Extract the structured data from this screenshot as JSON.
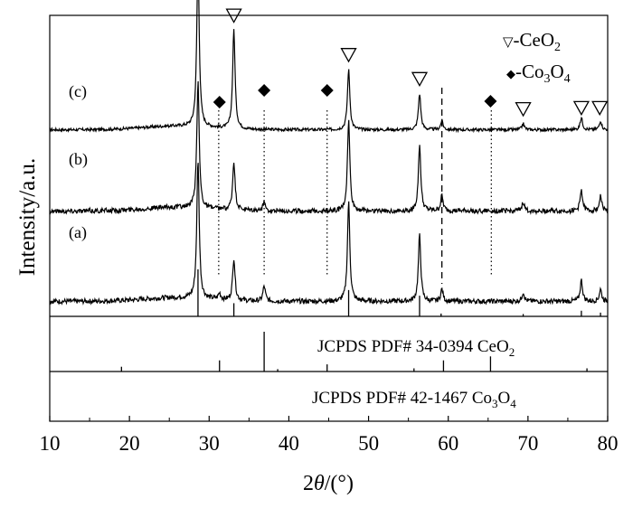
{
  "chart_data": {
    "type": "line",
    "xlabel_prefix": "2",
    "xlabel_theta": "θ",
    "xlabel_suffix": "/(°)",
    "ylabel": "Intensity/a.u.",
    "xlim": [
      10,
      80
    ],
    "x_ticks": [
      10,
      20,
      30,
      40,
      50,
      60,
      70,
      80
    ],
    "legend": {
      "position": "top-right",
      "ceo2_symbol": "▽",
      "ceo2_text": "-CeO",
      "ceo2_sub": "2",
      "co3o4_symbol": "◆",
      "co3o4_text_a": "-Co",
      "co3o4_sub_a": "3",
      "co3o4_text_b": "O",
      "co3o4_sub_b": "4"
    },
    "series": [
      {
        "label": "(c)",
        "baseline": 0.62,
        "noise": 0.005,
        "peaks": [
          [
            28.6,
            0.56
          ],
          [
            33.1,
            0.33
          ],
          [
            47.5,
            0.2
          ],
          [
            56.4,
            0.12
          ],
          [
            59.2,
            0.03
          ],
          [
            69.4,
            0.02
          ],
          [
            76.7,
            0.04
          ],
          [
            79.1,
            0.03
          ]
        ]
      },
      {
        "label": "(b)",
        "baseline": 0.35,
        "noise": 0.008,
        "peaks": [
          [
            28.6,
            0.42
          ],
          [
            33.1,
            0.16
          ],
          [
            36.9,
            0.03
          ],
          [
            47.5,
            0.3
          ],
          [
            56.4,
            0.22
          ],
          [
            59.2,
            0.05
          ],
          [
            69.4,
            0.03
          ],
          [
            76.7,
            0.07
          ],
          [
            79.1,
            0.05
          ]
        ]
      },
      {
        "label": "(a)",
        "baseline": 0.05,
        "noise": 0.008,
        "peaks": [
          [
            28.6,
            0.46
          ],
          [
            31.3,
            0.02
          ],
          [
            33.1,
            0.14
          ],
          [
            36.9,
            0.05
          ],
          [
            47.5,
            0.33
          ],
          [
            56.4,
            0.22
          ],
          [
            59.2,
            0.04
          ],
          [
            69.4,
            0.03
          ],
          [
            76.7,
            0.07
          ],
          [
            79.1,
            0.04
          ]
        ]
      }
    ],
    "ceo2_markers": [
      28.6,
      33.1,
      47.5,
      56.4,
      69.4,
      76.7,
      79.0
    ],
    "co3o4_markers": [
      31.3,
      36.9,
      44.8,
      65.3
    ],
    "dotted_guides": [
      31.2,
      36.9,
      44.8,
      65.4
    ],
    "dashed_guides": [
      59.2
    ],
    "ref_ceo2": {
      "label_text": "JCPDS PDF# 34-0394 CeO",
      "label_sub": "2",
      "lines": [
        [
          28.6,
          1.0
        ],
        [
          33.1,
          0.28
        ],
        [
          47.5,
          0.56
        ],
        [
          56.4,
          0.44
        ],
        [
          59.1,
          0.06
        ],
        [
          69.4,
          0.05
        ],
        [
          76.7,
          0.12
        ],
        [
          79.1,
          0.08
        ]
      ]
    },
    "ref_co3o4": {
      "label_text": "JCPDS PDF# 42-1467 Co",
      "label_sub_a": "3",
      "label_text_b": "O",
      "label_sub_b": "4",
      "lines": [
        [
          19.0,
          0.12
        ],
        [
          31.3,
          0.28
        ],
        [
          36.9,
          1.0
        ],
        [
          38.6,
          0.06
        ],
        [
          44.8,
          0.18
        ],
        [
          55.7,
          0.08
        ],
        [
          59.4,
          0.28
        ],
        [
          65.3,
          0.38
        ],
        [
          77.4,
          0.08
        ]
      ]
    }
  }
}
